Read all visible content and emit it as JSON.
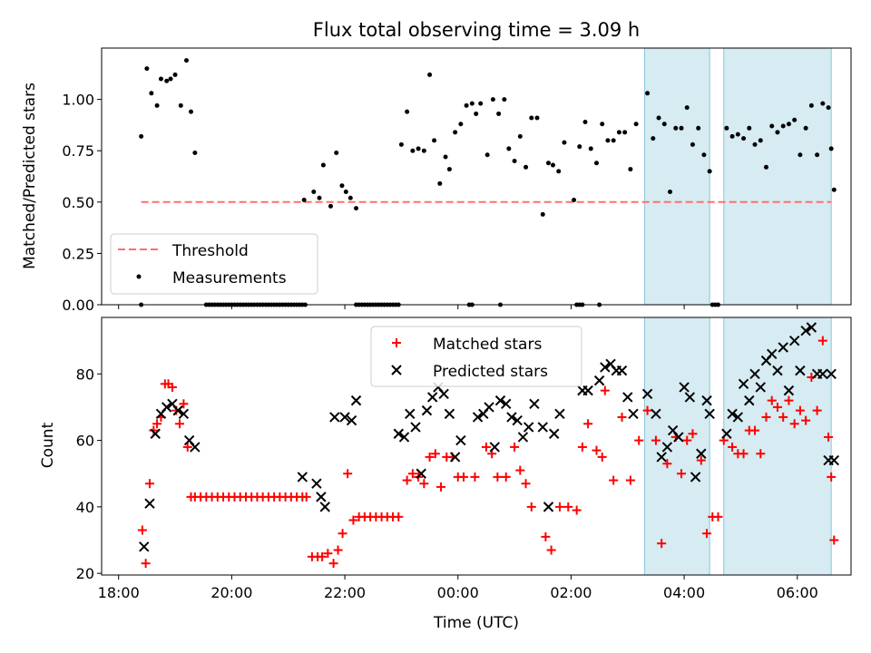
{
  "chart_data": [
    {
      "type": "scatter",
      "title": "Flux total observing time = 3.09 h",
      "ylabel": "Matched/Predicted stars",
      "xlabel": "",
      "ylim": [
        0,
        1.25
      ],
      "yticks": [
        "0.00",
        "0.25",
        "0.50",
        "0.75",
        "1.00"
      ],
      "xlim": [
        -0.3,
        12.95
      ],
      "shaded_intervals_h": [
        [
          9.3,
          10.45
        ],
        [
          10.7,
          12.6
        ]
      ],
      "shade_color": "#add8e6",
      "threshold": {
        "name": "Threshold",
        "value": 0.5,
        "x_range_h": [
          0.4,
          12.6
        ],
        "color": "#ff6f6f",
        "style": "dashed"
      },
      "legend": {
        "placement": "lower-left",
        "entries": [
          "Threshold",
          "Measurements"
        ]
      },
      "series": [
        {
          "name": "Measurements",
          "color": "#000000",
          "marker": "dot",
          "x_h": [
            0.4,
            0.5,
            0.58,
            0.68,
            0.75,
            0.85,
            0.92,
            1.0,
            1.1,
            1.2,
            1.28,
            1.35,
            3.28,
            3.45,
            3.55,
            3.62,
            3.75,
            3.85,
            3.95,
            4.02,
            4.1,
            4.2,
            5.0,
            5.1,
            5.2,
            5.3,
            5.4,
            5.5,
            5.58,
            5.68,
            5.78,
            5.85,
            5.95,
            6.05,
            6.15,
            6.25,
            6.32,
            6.4,
            6.52,
            6.62,
            6.72,
            6.82,
            6.9,
            7.0,
            7.1,
            7.2,
            7.3,
            7.4,
            7.5,
            7.6,
            7.68,
            7.78,
            7.88,
            8.05,
            8.15,
            8.25,
            8.35,
            8.45,
            8.55,
            8.65,
            8.75,
            8.85,
            8.95,
            9.05,
            9.15,
            9.35,
            9.45,
            9.55,
            9.65,
            9.75,
            9.85,
            9.95,
            10.05,
            10.15,
            10.25,
            10.35,
            10.45,
            10.75,
            10.85,
            10.95,
            11.05,
            11.15,
            11.25,
            11.35,
            11.45,
            11.55,
            11.65,
            11.75,
            11.85,
            11.95,
            12.05,
            12.15,
            12.25,
            12.35,
            12.45,
            12.55,
            12.6,
            12.65
          ],
          "y": [
            0.82,
            1.15,
            1.03,
            0.97,
            1.1,
            1.09,
            1.1,
            1.12,
            0.97,
            1.19,
            0.94,
            0.74,
            0.51,
            0.55,
            0.52,
            0.68,
            0.48,
            0.74,
            0.58,
            0.55,
            0.52,
            0.47,
            0.78,
            0.94,
            0.75,
            0.76,
            0.75,
            1.12,
            0.8,
            0.59,
            0.72,
            0.66,
            0.84,
            0.88,
            0.97,
            0.98,
            0.93,
            0.98,
            0.73,
            1.0,
            0.93,
            1.0,
            0.76,
            0.7,
            0.82,
            0.67,
            0.91,
            0.91,
            0.44,
            0.69,
            0.68,
            0.65,
            0.79,
            0.51,
            0.77,
            0.89,
            0.76,
            0.69,
            0.88,
            0.8,
            0.8,
            0.84,
            0.84,
            0.66,
            0.88,
            1.03,
            0.81,
            0.91,
            0.88,
            0.55,
            0.86,
            0.86,
            0.96,
            0.78,
            0.86,
            0.73,
            0.65,
            0.86,
            0.82,
            0.83,
            0.81,
            0.86,
            0.78,
            0.8,
            0.67,
            0.87,
            0.84,
            0.87,
            0.88,
            0.9,
            0.73,
            0.86,
            0.97,
            0.73,
            0.98,
            0.96,
            0.76,
            0.56
          ],
          "zero_x_h": [
            0.4,
            1.55,
            1.6,
            1.65,
            1.7,
            1.75,
            1.8,
            1.85,
            1.9,
            1.95,
            2.0,
            2.05,
            2.1,
            2.15,
            2.2,
            2.25,
            2.3,
            2.35,
            2.4,
            2.45,
            2.5,
            2.55,
            2.6,
            2.65,
            2.7,
            2.75,
            2.8,
            2.85,
            2.9,
            2.95,
            3.0,
            3.05,
            3.1,
            3.15,
            3.2,
            3.25,
            3.3,
            4.2,
            4.25,
            4.3,
            4.35,
            4.4,
            4.45,
            4.5,
            4.55,
            4.6,
            4.65,
            4.7,
            4.75,
            4.8,
            4.85,
            4.9,
            4.95,
            6.2,
            6.25,
            6.75,
            8.1,
            8.15,
            8.2,
            8.5,
            10.5,
            10.55,
            10.6
          ]
        }
      ]
    },
    {
      "type": "scatter",
      "title": "",
      "ylabel": "Count",
      "xlabel": "Time (UTC)",
      "ylim": [
        19.5,
        97
      ],
      "yticks": [
        "20",
        "40",
        "60",
        "80"
      ],
      "xlim": [
        -0.3,
        12.95
      ],
      "x_ticks": [
        {
          "h": 0,
          "label": "18:00"
        },
        {
          "h": 2,
          "label": "20:00"
        },
        {
          "h": 4,
          "label": "22:00"
        },
        {
          "h": 6,
          "label": "00:00"
        },
        {
          "h": 8,
          "label": "02:00"
        },
        {
          "h": 10,
          "label": "04:00"
        },
        {
          "h": 12,
          "label": "06:00"
        }
      ],
      "shaded_intervals_h": [
        [
          9.3,
          10.45
        ],
        [
          10.7,
          12.6
        ]
      ],
      "legend": {
        "placement": "upper-center",
        "entries": [
          "Matched stars",
          "Predicted stars"
        ]
      },
      "series": [
        {
          "name": "Matched stars",
          "color": "#ff0000",
          "marker": "plus",
          "x_h": [
            0.42,
            0.48,
            0.55,
            0.62,
            0.68,
            0.75,
            0.82,
            0.88,
            0.95,
            1.02,
            1.08,
            1.15,
            1.22,
            1.28,
            1.35,
            1.45,
            1.55,
            1.65,
            1.75,
            1.85,
            1.95,
            2.05,
            2.15,
            2.25,
            2.35,
            2.45,
            2.55,
            2.65,
            2.75,
            2.85,
            2.95,
            3.05,
            3.15,
            3.25,
            3.32,
            3.42,
            3.52,
            3.6,
            3.7,
            3.8,
            3.88,
            3.96,
            4.05,
            4.15,
            4.25,
            4.35,
            4.45,
            4.55,
            4.65,
            4.75,
            4.85,
            4.95,
            5.1,
            5.2,
            5.3,
            5.4,
            5.5,
            5.6,
            5.7,
            5.8,
            5.9,
            6.0,
            6.1,
            6.3,
            6.5,
            6.6,
            6.7,
            6.85,
            7.0,
            7.1,
            7.2,
            7.3,
            7.55,
            7.65,
            7.8,
            7.95,
            8.1,
            8.2,
            8.3,
            8.45,
            8.55,
            8.6,
            8.75,
            8.9,
            9.05,
            9.2,
            9.35,
            9.5,
            9.6,
            9.7,
            9.85,
            9.95,
            10.05,
            10.15,
            10.3,
            10.4,
            10.5,
            10.6,
            10.7,
            10.85,
            10.95,
            11.05,
            11.15,
            11.25,
            11.35,
            11.45,
            11.55,
            11.65,
            11.75,
            11.85,
            11.95,
            12.05,
            12.15,
            12.25,
            12.35,
            12.45,
            12.55,
            12.6,
            12.65
          ],
          "y": [
            33,
            23,
            47,
            63,
            65,
            67,
            77,
            77,
            76,
            69,
            65,
            71,
            58,
            43,
            43,
            43,
            43,
            43,
            43,
            43,
            43,
            43,
            43,
            43,
            43,
            43,
            43,
            43,
            43,
            43,
            43,
            43,
            43,
            43,
            43,
            25,
            25,
            25,
            26,
            23,
            27,
            32,
            50,
            36,
            37,
            37,
            37,
            37,
            37,
            37,
            37,
            37,
            48,
            50,
            49,
            47,
            55,
            56,
            46,
            55,
            55,
            49,
            49,
            49,
            58,
            56,
            49,
            49,
            58,
            51,
            47,
            40,
            31,
            27,
            40,
            40,
            39,
            58,
            65,
            57,
            55,
            75,
            48,
            67,
            48,
            60,
            69,
            60,
            29,
            53,
            61,
            50,
            60,
            62,
            54,
            32,
            37,
            37,
            60,
            58,
            56,
            56,
            63,
            63,
            56,
            67,
            72,
            70,
            67,
            72,
            65,
            69,
            66,
            79,
            69,
            90,
            61,
            49,
            30
          ],
          "highlight_y_count": 119
        },
        {
          "name": "Predicted stars",
          "color": "#000000",
          "marker": "x",
          "x_h": [
            0.45,
            0.55,
            0.65,
            0.75,
            0.85,
            0.95,
            1.05,
            1.15,
            1.25,
            1.35,
            3.25,
            3.5,
            3.58,
            3.65,
            3.82,
            4.0,
            4.12,
            4.2,
            4.95,
            5.05,
            5.15,
            5.25,
            5.35,
            5.45,
            5.55,
            5.65,
            5.75,
            5.85,
            5.95,
            6.05,
            6.35,
            6.45,
            6.55,
            6.65,
            6.75,
            6.85,
            6.95,
            7.05,
            7.15,
            7.25,
            7.35,
            7.5,
            7.6,
            7.7,
            7.8,
            8.2,
            8.3,
            8.5,
            8.6,
            8.7,
            8.8,
            8.9,
            9.0,
            9.1,
            9.35,
            9.5,
            9.6,
            9.7,
            9.8,
            9.9,
            10.0,
            10.1,
            10.2,
            10.3,
            10.4,
            10.45,
            10.75,
            10.85,
            10.95,
            11.05,
            11.15,
            11.25,
            11.35,
            11.45,
            11.55,
            11.65,
            11.75,
            11.85,
            11.95,
            12.05,
            12.15,
            12.25,
            12.35,
            12.45,
            12.55,
            12.6,
            12.65
          ],
          "y": [
            28,
            41,
            62,
            68,
            70,
            71,
            69,
            68,
            60,
            58,
            49,
            47,
            43,
            40,
            67,
            67,
            66,
            72,
            62,
            61,
            68,
            64,
            50,
            69,
            73,
            76,
            74,
            68,
            55,
            60,
            67,
            68,
            70,
            58,
            72,
            71,
            67,
            66,
            61,
            64,
            71,
            64,
            40,
            62,
            68,
            75,
            75,
            78,
            82,
            83,
            81,
            81,
            73,
            68,
            74,
            68,
            55,
            58,
            63,
            61,
            76,
            73,
            49,
            56,
            72,
            68,
            62,
            68,
            67,
            77,
            72,
            80,
            76,
            84,
            86,
            81,
            88,
            75,
            90,
            81,
            93,
            94,
            80,
            80,
            54,
            80,
            54
          ]
        }
      ]
    }
  ]
}
